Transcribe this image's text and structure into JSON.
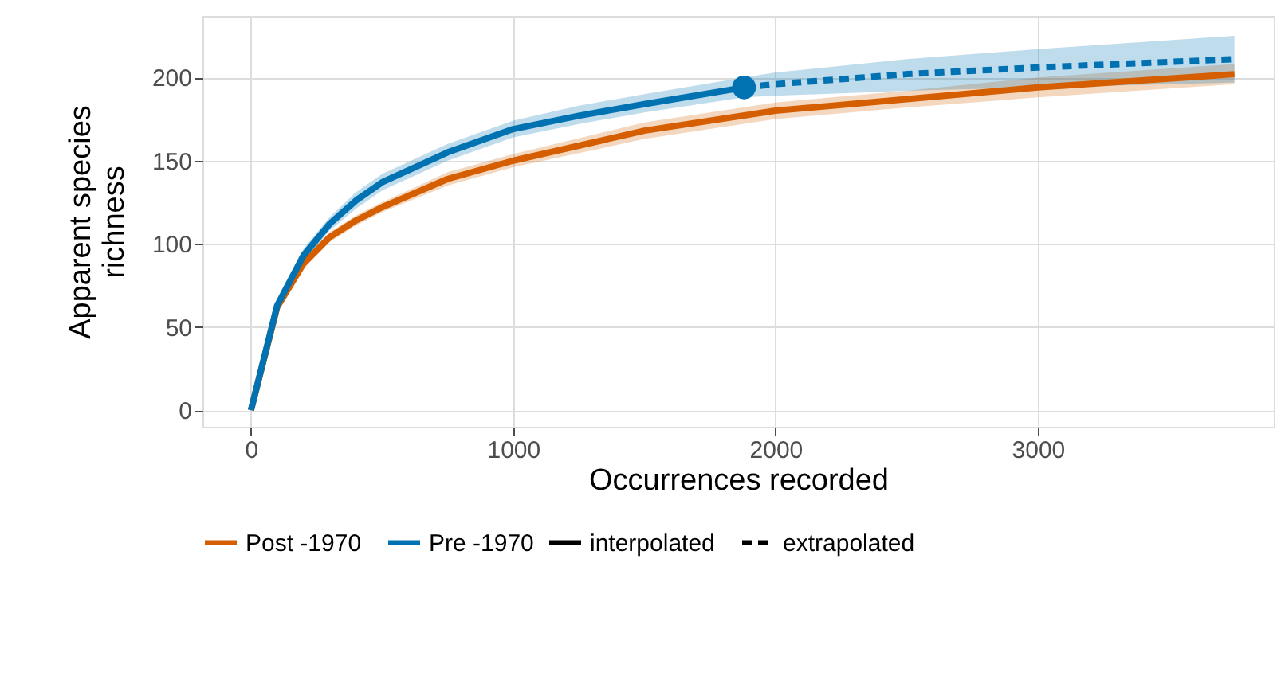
{
  "chart_data": {
    "type": "line",
    "xlabel": "Occurrences recorded",
    "ylabel": "Apparent species richness",
    "annotations": [
      "interpolated",
      "extrapolated"
    ],
    "xlim": [
      -185,
      3900
    ],
    "ylim": [
      -10,
      237
    ],
    "xticks": [
      0,
      1000,
      2000,
      3000
    ],
    "yticks": [
      0,
      50,
      100,
      150,
      200
    ],
    "grid": true,
    "legend": "bottom",
    "series": [
      {
        "name": "Post -1970",
        "color": "#d55e00",
        "line_style": "solid",
        "x": [
          0,
          100,
          200,
          300,
          400,
          500,
          750,
          1000,
          1500,
          2000,
          2500,
          3000,
          3750
        ],
        "values": [
          0,
          62,
          88,
          104,
          114,
          122,
          139,
          150,
          168,
          180,
          187,
          194,
          202
        ],
        "lower": [
          0,
          60,
          85,
          101,
          111,
          119,
          135,
          146,
          163,
          175,
          182,
          188,
          196
        ],
        "upper": [
          0,
          64,
          91,
          107,
          117,
          125,
          143,
          154,
          173,
          185,
          192,
          200,
          208
        ]
      },
      {
        "name": "Pre -1970",
        "color": "#0072b2",
        "line_style": "solid",
        "x": [
          0,
          100,
          200,
          300,
          400,
          500,
          750,
          1000,
          1250,
          1500,
          1880
        ],
        "values": [
          0,
          63,
          93,
          112,
          126,
          137,
          155,
          169,
          177,
          184,
          194
        ],
        "lower": [
          0,
          60,
          89,
          108,
          121,
          132,
          150,
          164,
          172,
          179,
          188
        ],
        "upper": [
          0,
          66,
          97,
          116,
          131,
          142,
          160,
          174,
          183,
          190,
          200
        ]
      },
      {
        "color": "#0072b2",
        "line_style": "dashed",
        "x": [
          1880,
          2000,
          2500,
          3000,
          3750
        ],
        "values": [
          194,
          196,
          202,
          206,
          211
        ],
        "lower": [
          188,
          189,
          192,
          194,
          197
        ],
        "upper": [
          200,
          203,
          211,
          217,
          225
        ]
      },
      {
        "type": "scatter",
        "color": "#0072b2",
        "marker": "circle",
        "x": [
          1880
        ],
        "values": [
          194
        ]
      }
    ]
  }
}
